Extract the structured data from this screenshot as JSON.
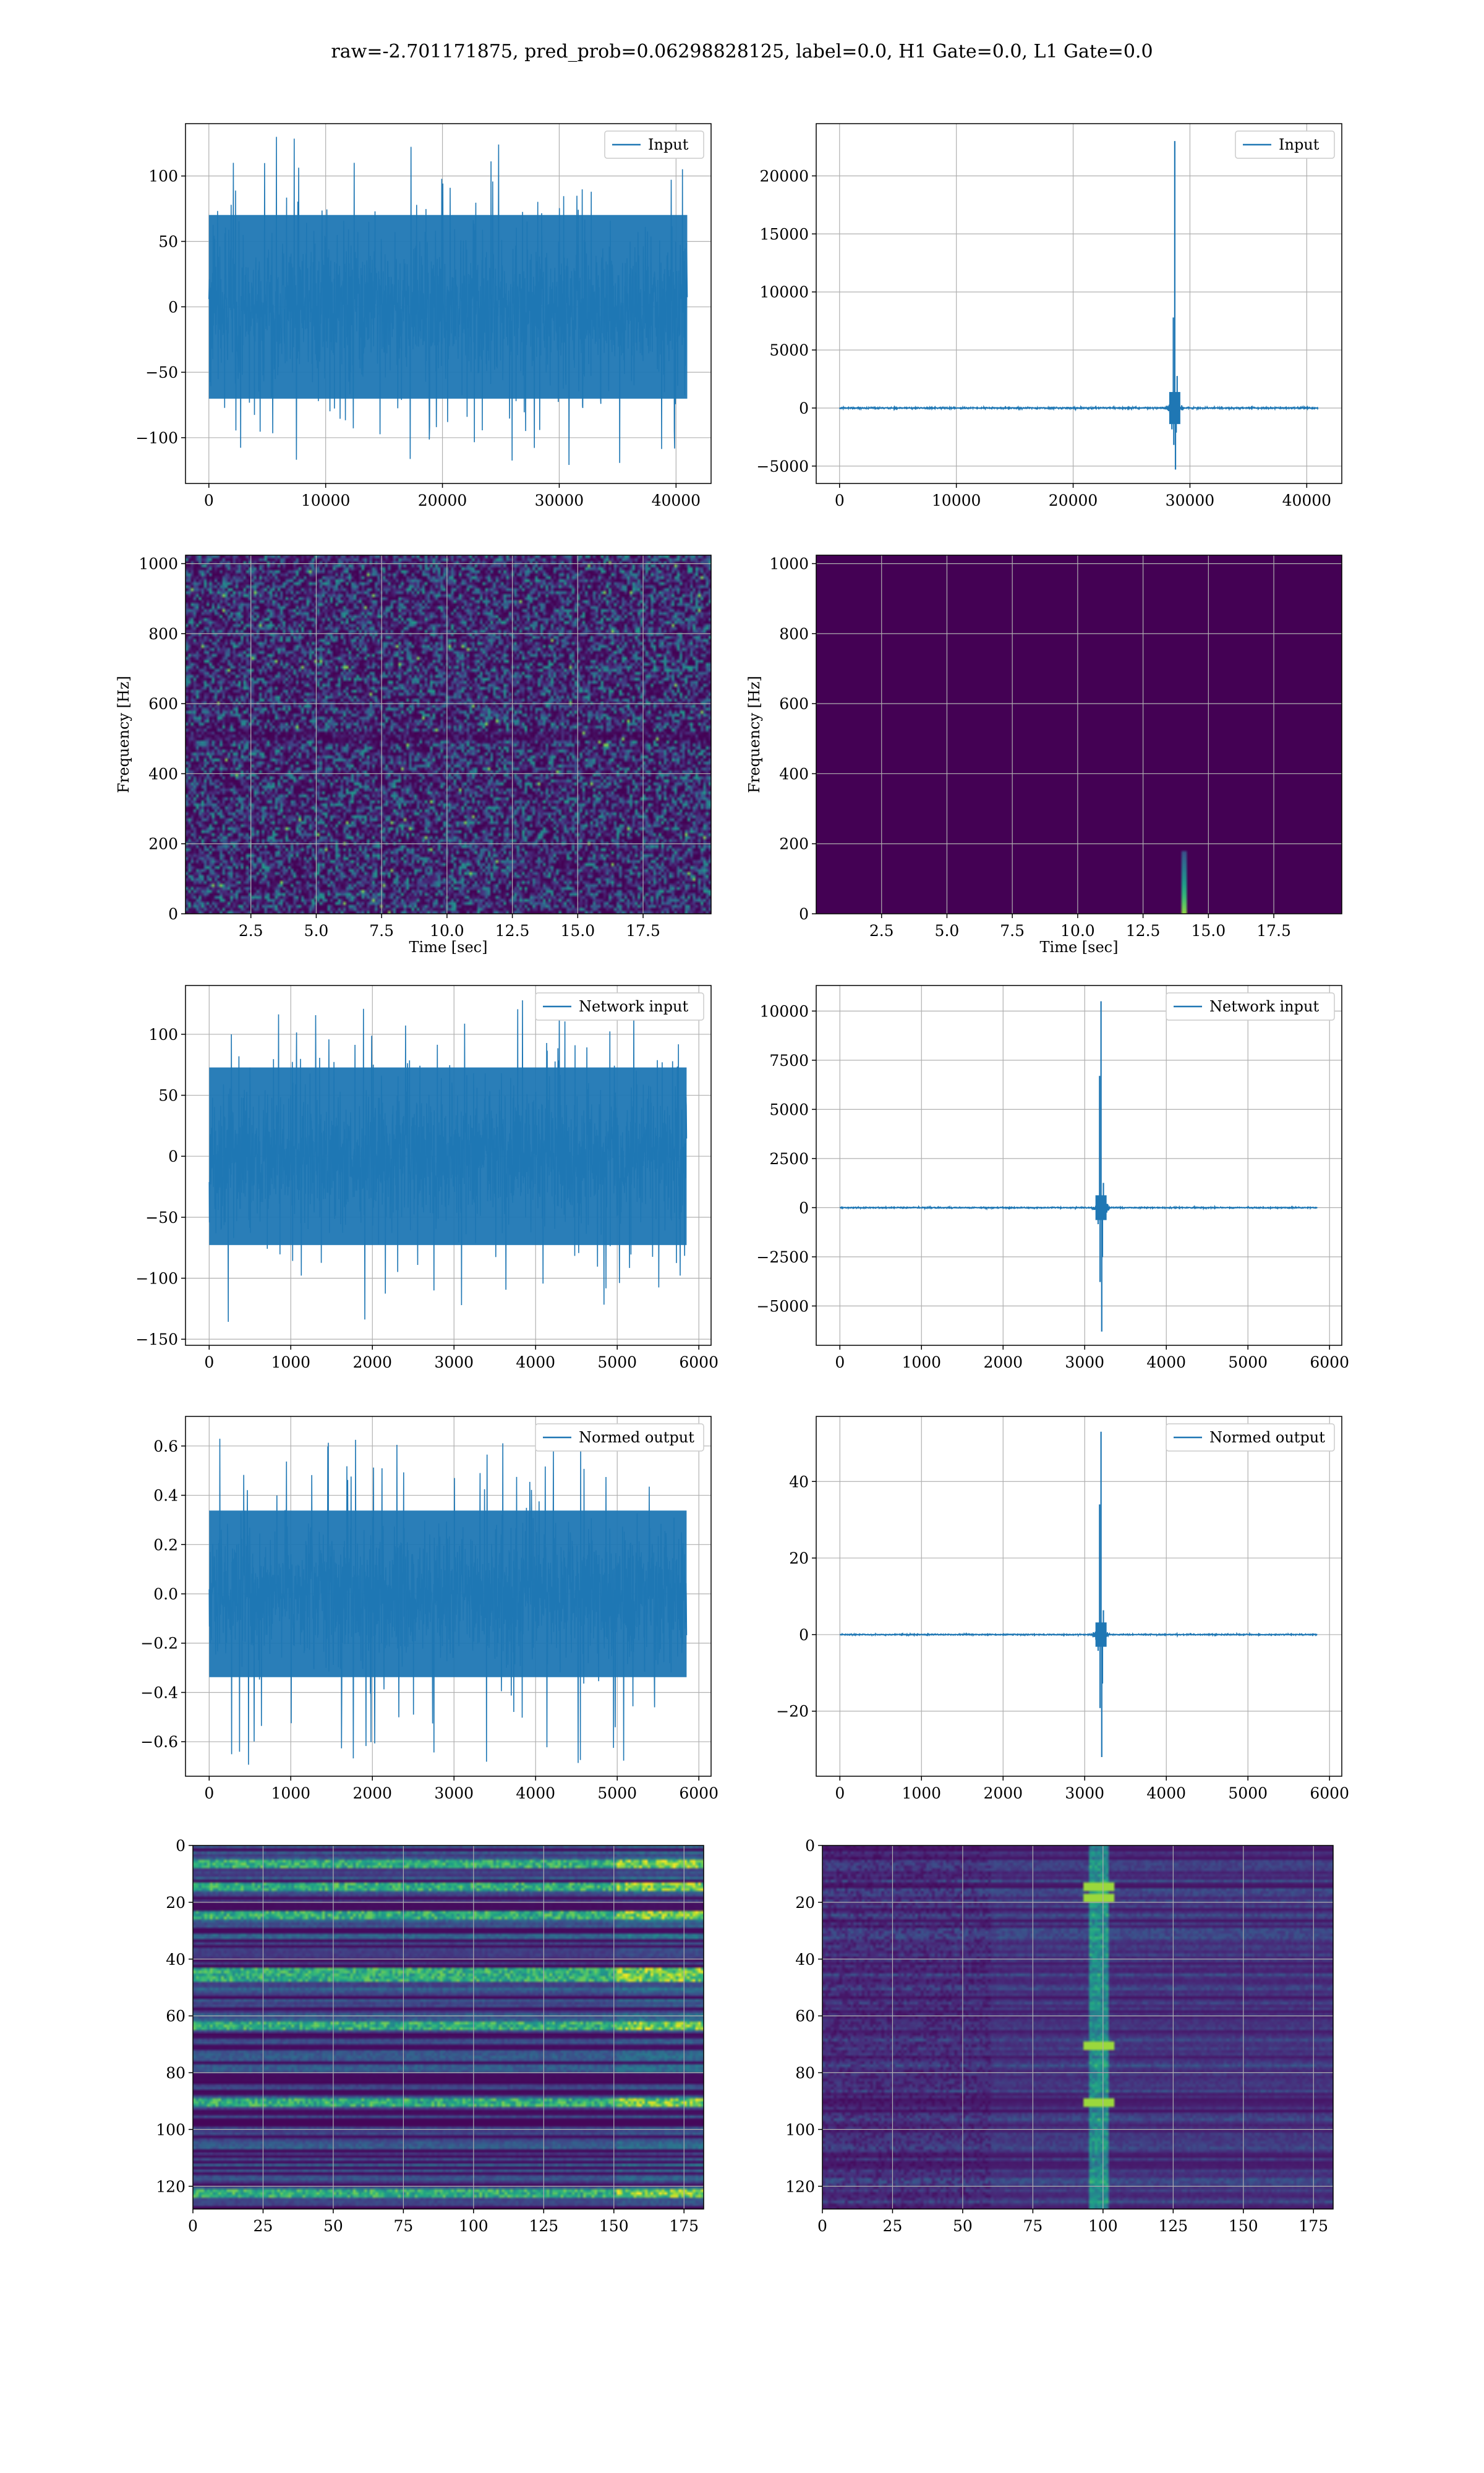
{
  "figure": {
    "suptitle": "raw=-2.701171875, pred_prob=0.06298828125, label=0.0, H1 Gate=0.0, L1 Gate=0.0"
  },
  "colors": {
    "line": "#1f77b4",
    "grid": "#b0b0b0",
    "viridis_dark": "#440154"
  },
  "chart_data": [
    {
      "id": "h1-input",
      "type": "line",
      "xlabel": "",
      "ylabel": "",
      "xlim": [
        -2000,
        43000
      ],
      "ylim": [
        -135,
        140
      ],
      "xticks": [
        0,
        10000,
        20000,
        30000,
        40000
      ],
      "yticks": [
        -100,
        -50,
        0,
        50,
        100
      ],
      "series": [
        {
          "name": "Input",
          "kind": "noise",
          "n_samples": 40960,
          "x_range": [
            0,
            40960
          ],
          "std": 27,
          "peak_range": [
            -125,
            130
          ]
        }
      ]
    },
    {
      "id": "l1-input",
      "type": "line",
      "xlabel": "",
      "ylabel": "",
      "xlim": [
        -2000,
        43000
      ],
      "ylim": [
        -6500,
        24500
      ],
      "xticks": [
        0,
        10000,
        20000,
        30000,
        40000
      ],
      "yticks": [
        -5000,
        0,
        5000,
        10000,
        15000,
        20000
      ],
      "series": [
        {
          "name": "Input",
          "kind": "glitch",
          "x_range": [
            0,
            40960
          ],
          "glitch_x": 28700,
          "peak_max": 23000,
          "peak_min": -5300,
          "secondary_peak": 7800
        }
      ]
    },
    {
      "id": "h1-spectrogram",
      "type": "heatmap",
      "xlabel": "Time [sec]",
      "ylabel": "Frequency [Hz]",
      "xlim": [
        0,
        20.1
      ],
      "ylim": [
        0,
        1024
      ],
      "xticks": [
        2.5,
        5.0,
        7.5,
        10.0,
        12.5,
        15.0,
        17.5
      ],
      "yticks": [
        0,
        200,
        400,
        600,
        800,
        1000
      ],
      "colormap": "viridis",
      "pattern": "noise"
    },
    {
      "id": "l1-spectrogram",
      "type": "heatmap",
      "xlabel": "Time [sec]",
      "ylabel": "Frequency [Hz]",
      "xlim": [
        0,
        20.1
      ],
      "ylim": [
        0,
        1024
      ],
      "xticks": [
        2.5,
        5.0,
        7.5,
        10.0,
        12.5,
        15.0,
        17.5
      ],
      "yticks": [
        0,
        200,
        400,
        600,
        800,
        1000
      ],
      "colormap": "viridis",
      "pattern": "glitch",
      "glitch_time": 14.0,
      "glitch_freq_max": 180
    },
    {
      "id": "h1-network-input",
      "type": "line",
      "xlabel": "",
      "ylabel": "",
      "xlim": [
        -290,
        6150
      ],
      "ylim": [
        -155,
        140
      ],
      "xticks": [
        0,
        1000,
        2000,
        3000,
        4000,
        5000,
        6000
      ],
      "yticks": [
        -150,
        -100,
        -50,
        0,
        50,
        100
      ],
      "series": [
        {
          "name": "Network input",
          "kind": "noise",
          "n_samples": 5850,
          "x_range": [
            0,
            5850
          ],
          "std": 28,
          "peak_range": [
            -140,
            128
          ]
        }
      ]
    },
    {
      "id": "l1-network-input",
      "type": "line",
      "xlabel": "",
      "ylabel": "",
      "xlim": [
        -290,
        6150
      ],
      "ylim": [
        -7000,
        11300
      ],
      "xticks": [
        0,
        1000,
        2000,
        3000,
        4000,
        5000,
        6000
      ],
      "yticks": [
        -5000,
        -2500,
        0,
        2500,
        5000,
        7500,
        10000
      ],
      "series": [
        {
          "name": "Network input",
          "kind": "glitch",
          "x_range": [
            0,
            5850
          ],
          "glitch_x": 3200,
          "peak_max": 10500,
          "peak_min": -6300,
          "secondary_peak": 6700
        }
      ]
    },
    {
      "id": "h1-normed-output",
      "type": "line",
      "xlabel": "",
      "ylabel": "",
      "xlim": [
        -290,
        6150
      ],
      "ylim": [
        -0.74,
        0.72
      ],
      "xticks": [
        0,
        1000,
        2000,
        3000,
        4000,
        5000,
        6000
      ],
      "yticks": [
        -0.6,
        -0.4,
        -0.2,
        0.0,
        0.2,
        0.4,
        0.6
      ],
      "series": [
        {
          "name": "Normed output",
          "kind": "noise",
          "n_samples": 5850,
          "x_range": [
            0,
            5850
          ],
          "std": 0.13,
          "peak_range": [
            -0.7,
            0.65
          ]
        }
      ]
    },
    {
      "id": "l1-normed-output",
      "type": "line",
      "xlabel": "",
      "ylabel": "",
      "xlim": [
        -290,
        6150
      ],
      "ylim": [
        -37,
        57
      ],
      "xticks": [
        0,
        1000,
        2000,
        3000,
        4000,
        5000,
        6000
      ],
      "yticks": [
        -20,
        0,
        20,
        40
      ],
      "series": [
        {
          "name": "Normed output",
          "kind": "glitch",
          "x_range": [
            0,
            5850
          ],
          "glitch_x": 3200,
          "peak_max": 53,
          "peak_min": -32,
          "secondary_peak": 34
        }
      ]
    },
    {
      "id": "h1-feature-map",
      "type": "heatmap",
      "xlabel": "",
      "ylabel": "",
      "xlim": [
        0,
        182
      ],
      "ylim": [
        128,
        0
      ],
      "xticks": [
        0,
        25,
        50,
        75,
        100,
        125,
        150,
        175
      ],
      "yticks": [
        0,
        20,
        40,
        60,
        80,
        100,
        120
      ],
      "colormap": "viridis",
      "pattern": "bands",
      "bright_rows": [
        6,
        14,
        24,
        44,
        46,
        63,
        90,
        122
      ]
    },
    {
      "id": "l1-feature-map",
      "type": "heatmap",
      "xlabel": "",
      "ylabel": "",
      "xlim": [
        0,
        182
      ],
      "ylim": [
        128,
        0
      ],
      "xticks": [
        0,
        25,
        50,
        75,
        100,
        125,
        150,
        175
      ],
      "yticks": [
        0,
        20,
        40,
        60,
        80,
        100,
        120
      ],
      "colormap": "viridis",
      "pattern": "column",
      "bright_col": 98,
      "bright_rows": [
        14,
        18,
        90,
        70
      ]
    }
  ]
}
